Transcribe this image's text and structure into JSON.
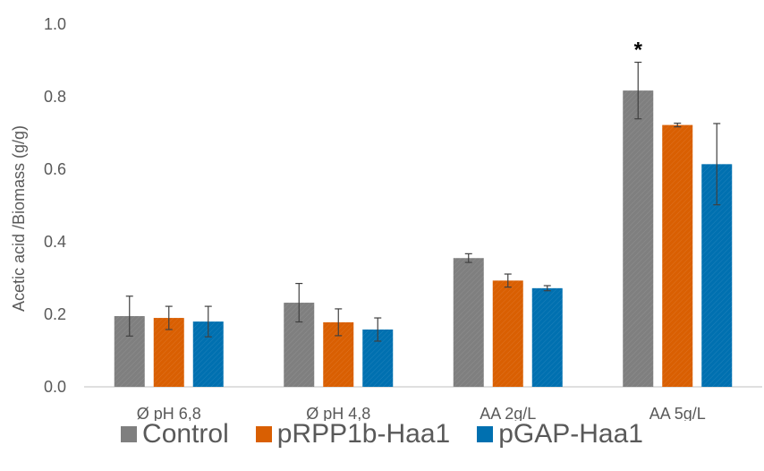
{
  "chart_data": {
    "type": "bar",
    "title": "",
    "xlabel": "",
    "ylabel": "Acetic acid /Biomass (g/g)",
    "ylim": [
      0,
      1.0
    ],
    "yticks": [
      "0.0",
      "0.2",
      "0.4",
      "0.6",
      "0.8",
      "1.0"
    ],
    "grid": false,
    "legend_position": "bottom",
    "categories": [
      "Ø pH 6,8",
      "Ø pH 4,8",
      "AA 2g/L",
      "AA 5g/L"
    ],
    "series": [
      {
        "name": "Control",
        "color": "#7f7f7f",
        "values": [
          0.195,
          0.232,
          0.355,
          0.817
        ],
        "errors": [
          0.055,
          0.053,
          0.012,
          0.078
        ]
      },
      {
        "name": "pRPP1b-Haa1",
        "color": "#d95f02",
        "values": [
          0.19,
          0.178,
          0.293,
          0.722
        ],
        "errors": [
          0.032,
          0.037,
          0.018,
          0.005
        ]
      },
      {
        "name": "pGAP-Haa1",
        "color": "#0070b0",
        "values": [
          0.18,
          0.158,
          0.272,
          0.614
        ],
        "errors": [
          0.042,
          0.032,
          0.007,
          0.112
        ]
      }
    ],
    "annotations": [
      {
        "text": "*",
        "category": "AA 5g/L",
        "series": "Control"
      }
    ]
  }
}
